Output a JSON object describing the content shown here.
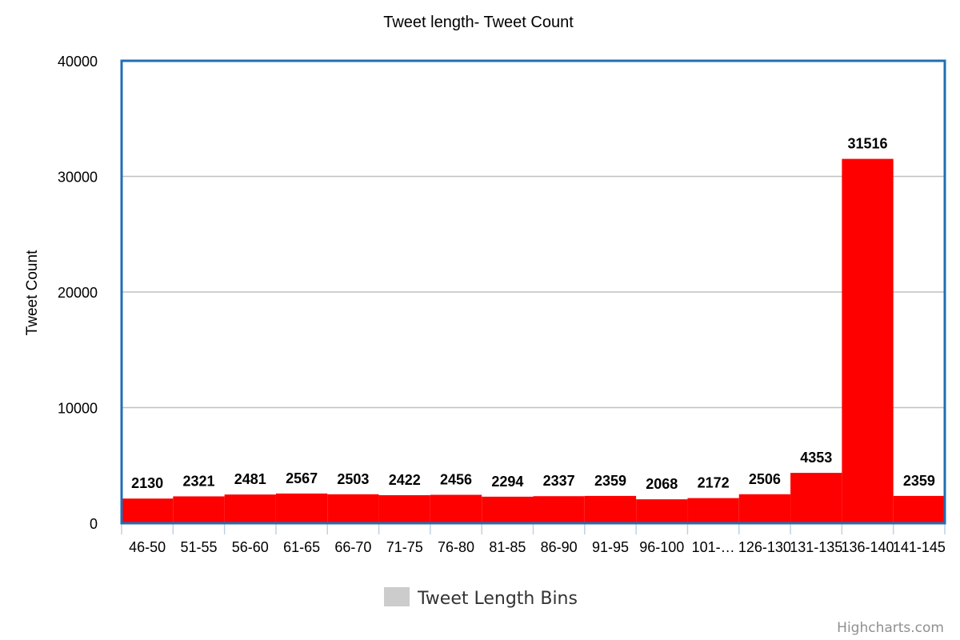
{
  "chart_data": {
    "type": "bar",
    "title": "Tweet length- Tweet Count",
    "ylabel": "Tweet Count",
    "xlabel": "",
    "ylim": [
      0,
      40000
    ],
    "yticks": [
      "0",
      "10000",
      "20000",
      "30000",
      "40000"
    ],
    "categories": [
      "46-50",
      "51-55",
      "56-60",
      "61-65",
      "66-70",
      "71-75",
      "76-80",
      "81-85",
      "86-90",
      "91-95",
      "96-100",
      "101-…",
      "126-130",
      "131-135",
      "136-140",
      "141-145"
    ],
    "series": [
      {
        "name": "Tweet Length Bins",
        "color": "#ff0000",
        "values": [
          2130,
          2321,
          2481,
          2567,
          2503,
          2422,
          2456,
          2294,
          2337,
          2359,
          2068,
          2172,
          2506,
          4353,
          31516,
          2359
        ]
      }
    ],
    "legend": {
      "position": "bottom-center",
      "swatch_color": "#cccccc"
    },
    "grid": true,
    "plot_border_color": "#1f6fb4",
    "grid_color": "#c0c0c0"
  },
  "credits": "Highcharts.com"
}
